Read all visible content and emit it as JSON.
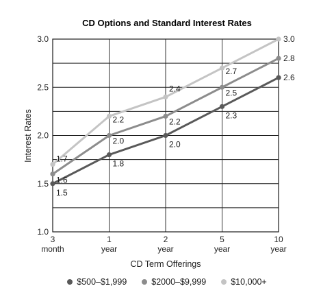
{
  "chart_data": {
    "type": "line",
    "title": "CD Options and Standard Interest Rates",
    "xlabel": "CD Term Offerings",
    "ylabel": "Interest Rates",
    "categories": [
      {
        "top": "3",
        "bottom": "month"
      },
      {
        "top": "1",
        "bottom": "year"
      },
      {
        "top": "2",
        "bottom": "year"
      },
      {
        "top": "5",
        "bottom": "year"
      },
      {
        "top": "10",
        "bottom": "year"
      }
    ],
    "ylim": [
      1.0,
      3.0
    ],
    "yticks": [
      "1.0",
      "1.5",
      "2.0",
      "2.5",
      "3.0"
    ],
    "grid": true,
    "legend_position": "bottom",
    "series": [
      {
        "name": "$500–$1,999",
        "color": "#595959",
        "values": [
          1.5,
          1.8,
          2.0,
          2.3,
          2.6
        ],
        "labels": [
          "1.5",
          "1.8",
          "2.0",
          "2.3",
          "2.6"
        ]
      },
      {
        "name": "$2000–$9,999",
        "color": "#8c8c8c",
        "values": [
          1.6,
          2.0,
          2.2,
          2.5,
          2.8
        ],
        "labels": [
          "1.6",
          "2.0",
          "2.2",
          "2.5",
          "2.8"
        ]
      },
      {
        "name": "$10,000+",
        "color": "#c4c4c4",
        "values": [
          1.7,
          2.2,
          2.4,
          2.7,
          3.0
        ],
        "labels": [
          "1.7",
          "2.2",
          "2.4",
          "2.7",
          "3.0"
        ]
      }
    ]
  }
}
